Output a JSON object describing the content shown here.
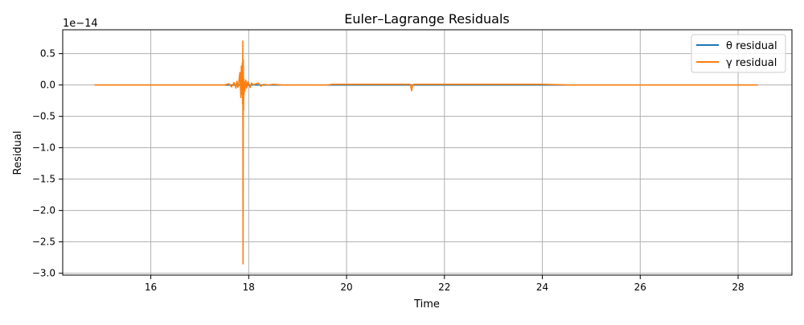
{
  "chart_data": {
    "type": "line",
    "title": "Euler–Lagrange Residuals",
    "xlabel": "Time",
    "ylabel": "Residual",
    "offset_label": "1e−14",
    "xlim": [
      14.2,
      29.1
    ],
    "ylim": [
      -3.03,
      0.88
    ],
    "x_ticks": [
      16,
      18,
      20,
      22,
      24,
      26,
      28
    ],
    "x_tick_labels": [
      "16",
      "18",
      "20",
      "22",
      "24",
      "26",
      "28"
    ],
    "y_ticks": [
      0.5,
      0.0,
      -0.5,
      -1.0,
      -1.5,
      -2.0,
      -2.5,
      -3.0
    ],
    "y_tick_labels": [
      "0.5",
      "0.0",
      "−0.5",
      "−1.0",
      "−1.5",
      "−2.0",
      "−2.5",
      "−3.0"
    ],
    "y_scale_factor": "1e-14",
    "grid": true,
    "legend_position": "top-right",
    "series": [
      {
        "name": "θ residual",
        "color": "#1f77b4",
        "x": [
          14.85,
          16.0,
          17.0,
          17.5,
          17.8,
          17.9,
          18.0,
          18.5,
          19.0,
          20.0,
          21.0,
          22.0,
          23.0,
          24.0,
          25.0,
          26.0,
          27.0,
          28.0,
          28.4
        ],
        "y": [
          0.0,
          0.0,
          0.0,
          0.0,
          0.0,
          0.0,
          0.0,
          0.0,
          0.0,
          0.0,
          0.0,
          0.0,
          0.0,
          0.0,
          0.0,
          0.0,
          0.0,
          0.0,
          0.0
        ]
      },
      {
        "name": "γ residual",
        "color": "#ff7f0e",
        "x": [
          14.85,
          16.0,
          17.0,
          17.5,
          17.6,
          17.65,
          17.7,
          17.72,
          17.74,
          17.76,
          17.78,
          17.8,
          17.82,
          17.84,
          17.85,
          17.86,
          17.87,
          17.875,
          17.88,
          17.885,
          17.89,
          17.895,
          17.9,
          17.905,
          17.91,
          17.92,
          17.94,
          17.96,
          17.98,
          18.0,
          18.03,
          18.06,
          18.1,
          18.15,
          18.2,
          18.25,
          18.3,
          18.4,
          18.5,
          18.7,
          19.0,
          19.6,
          19.7,
          20.5,
          21.3,
          21.33,
          21.35,
          21.37,
          21.4,
          22.0,
          23.0,
          24.0,
          24.6,
          25.0,
          26.0,
          27.0,
          28.0,
          28.4
        ],
        "y": [
          0.0,
          0.0,
          0.0,
          0.0,
          0.02,
          -0.03,
          0.04,
          0.0,
          -0.05,
          0.06,
          -0.04,
          0.05,
          0.2,
          -0.2,
          0.3,
          -0.15,
          0.35,
          -0.3,
          0.7,
          -2.85,
          0.4,
          -0.4,
          0.1,
          -0.15,
          0.05,
          -0.1,
          0.08,
          -0.05,
          0.05,
          0.02,
          -0.04,
          0.03,
          0.0,
          0.02,
          0.03,
          -0.02,
          0.01,
          0.0,
          0.01,
          0.0,
          0.0,
          0.0,
          0.01,
          0.01,
          0.01,
          -0.09,
          0.0,
          0.01,
          0.01,
          0.01,
          0.01,
          0.01,
          0.0,
          0.0,
          0.0,
          0.0,
          0.0,
          0.0
        ]
      }
    ]
  }
}
